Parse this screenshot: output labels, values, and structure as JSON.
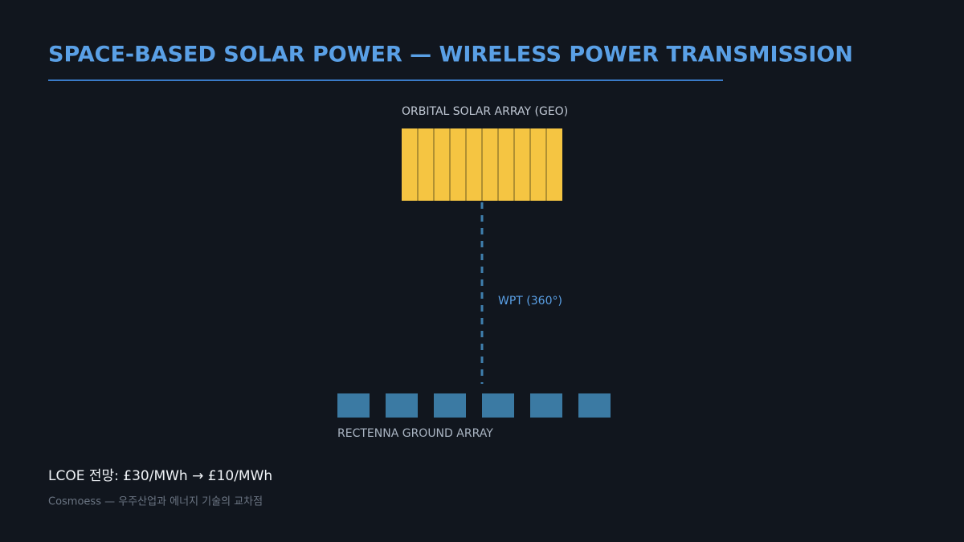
{
  "header": {
    "title": "SPACE-BASED SOLAR POWER — WIRELESS POWER TRANSMISSION"
  },
  "diagram": {
    "orbital_label": "ORBITAL SOLAR ARRAY (GEO)",
    "beam_label": "WPT (360°)",
    "ground_label": "RECTENNA GROUND ARRAY"
  },
  "footer": {
    "lcoe": "LCOE 전망: £30/MWh → £10/MWh",
    "credit": "Cosmoess — 우주산업과 에너지 기술의 교차점"
  }
}
